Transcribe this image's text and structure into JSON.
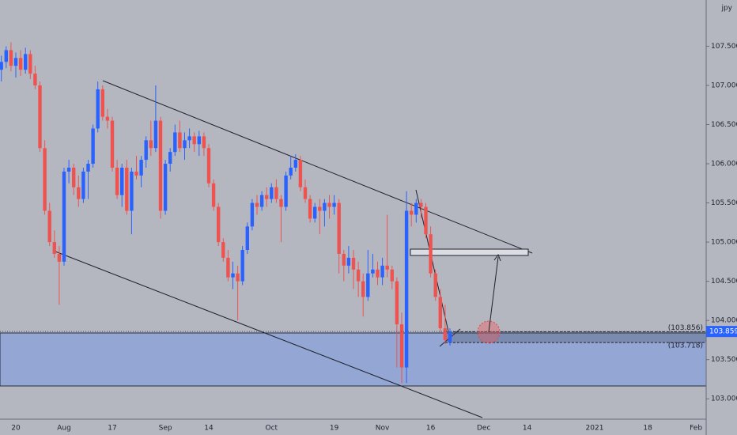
{
  "chart_data": {
    "type": "candlestick",
    "currency": "jpy",
    "categories": [
      null,
      null,
      null,
      "20",
      null,
      null,
      null,
      null,
      null,
      null,
      null,
      null,
      null,
      "Aug",
      null,
      null,
      null,
      null,
      null,
      null,
      null,
      null,
      null,
      "17",
      null,
      null,
      null,
      null,
      null,
      null,
      null,
      null,
      null,
      null,
      "Sep",
      null,
      null,
      null,
      null,
      null,
      null,
      null,
      null,
      "14",
      null,
      null,
      null,
      null,
      null,
      null,
      null,
      null,
      null,
      null,
      null,
      null,
      "Oct",
      null,
      null,
      null,
      null,
      null,
      null,
      null,
      null,
      null,
      null,
      null,
      null,
      "19",
      null,
      null,
      null,
      null,
      null,
      null,
      null,
      null,
      null,
      "Nov",
      null,
      null,
      null,
      null,
      null,
      null,
      null,
      null,
      null,
      "16",
      null,
      null,
      null,
      null,
      null,
      null,
      null,
      null,
      null,
      null,
      "Dec",
      null,
      null,
      null,
      null,
      null,
      null,
      null,
      null,
      "14",
      null,
      null,
      null,
      null,
      null,
      null,
      null,
      null,
      null,
      null,
      null,
      null,
      null,
      "2021",
      null,
      null,
      null,
      null,
      null,
      null,
      null,
      null,
      null,
      null,
      "18",
      null,
      null,
      null,
      null,
      null,
      null,
      null,
      null,
      null,
      "Feb",
      null
    ],
    "ohlc": [
      [
        107.2,
        107.38,
        107.05,
        107.3
      ],
      [
        107.3,
        107.5,
        107.22,
        107.45
      ],
      [
        107.45,
        107.55,
        107.18,
        107.25
      ],
      [
        107.25,
        107.42,
        107.1,
        107.35
      ],
      [
        107.35,
        107.45,
        107.12,
        107.2
      ],
      [
        107.2,
        107.48,
        107.15,
        107.4
      ],
      [
        107.4,
        107.45,
        107.08,
        107.15
      ],
      [
        107.15,
        107.25,
        106.95,
        107.0
      ],
      [
        107.0,
        107.05,
        106.15,
        106.2
      ],
      [
        106.2,
        106.3,
        105.35,
        105.4
      ],
      [
        105.4,
        105.5,
        104.95,
        105.0
      ],
      [
        105.0,
        105.15,
        104.8,
        104.85
      ],
      [
        104.85,
        104.95,
        104.2,
        104.75
      ],
      [
        104.75,
        105.95,
        104.7,
        105.9
      ],
      [
        105.9,
        106.05,
        105.75,
        105.95
      ],
      [
        105.95,
        106.0,
        105.6,
        105.7
      ],
      [
        105.7,
        105.85,
        105.45,
        105.55
      ],
      [
        105.55,
        105.95,
        105.5,
        105.9
      ],
      [
        105.9,
        106.05,
        105.55,
        106.0
      ],
      [
        106.0,
        106.5,
        105.95,
        106.45
      ],
      [
        106.45,
        107.05,
        106.4,
        106.95
      ],
      [
        106.95,
        107.0,
        106.55,
        106.6
      ],
      [
        106.6,
        106.7,
        106.45,
        106.55
      ],
      [
        106.55,
        106.6,
        105.9,
        105.95
      ],
      [
        105.95,
        106.05,
        105.55,
        105.6
      ],
      [
        105.6,
        106.0,
        105.45,
        105.95
      ],
      [
        105.95,
        106.05,
        105.35,
        105.4
      ],
      [
        105.4,
        105.95,
        105.1,
        105.9
      ],
      [
        105.9,
        106.1,
        105.8,
        105.85
      ],
      [
        105.85,
        106.1,
        105.7,
        106.05
      ],
      [
        106.05,
        106.35,
        105.95,
        106.3
      ],
      [
        106.3,
        106.55,
        106.1,
        106.2
      ],
      [
        106.2,
        107.0,
        106.15,
        106.55
      ],
      [
        106.55,
        106.6,
        105.3,
        105.4
      ],
      [
        105.4,
        106.05,
        105.35,
        106.0
      ],
      [
        106.0,
        106.2,
        105.9,
        106.15
      ],
      [
        106.15,
        106.5,
        106.1,
        106.4
      ],
      [
        106.4,
        106.55,
        106.15,
        106.2
      ],
      [
        106.2,
        106.4,
        106.05,
        106.3
      ],
      [
        106.3,
        106.45,
        106.2,
        106.35
      ],
      [
        106.35,
        106.4,
        106.15,
        106.25
      ],
      [
        106.25,
        106.42,
        106.1,
        106.35
      ],
      [
        106.35,
        106.4,
        106.1,
        106.2
      ],
      [
        106.2,
        106.25,
        105.7,
        105.75
      ],
      [
        105.75,
        105.8,
        105.4,
        105.45
      ],
      [
        105.45,
        105.5,
        104.95,
        105.0
      ],
      [
        105.0,
        105.05,
        104.75,
        104.8
      ],
      [
        104.8,
        104.9,
        104.5,
        104.55
      ],
      [
        104.55,
        104.75,
        104.4,
        104.6
      ],
      [
        104.6,
        104.7,
        104.0,
        104.5
      ],
      [
        104.5,
        104.95,
        104.45,
        104.9
      ],
      [
        104.9,
        105.25,
        104.85,
        105.2
      ],
      [
        105.2,
        105.55,
        105.15,
        105.5
      ],
      [
        105.5,
        105.6,
        105.35,
        105.45
      ],
      [
        105.45,
        105.65,
        105.4,
        105.6
      ],
      [
        105.6,
        105.7,
        105.45,
        105.55
      ],
      [
        105.55,
        105.75,
        105.5,
        105.7
      ],
      [
        105.7,
        105.8,
        105.5,
        105.55
      ],
      [
        105.55,
        105.6,
        105.0,
        105.45
      ],
      [
        105.45,
        105.9,
        105.4,
        105.85
      ],
      [
        105.85,
        106.1,
        105.8,
        105.95
      ],
      [
        105.95,
        106.12,
        105.9,
        106.05
      ],
      [
        106.05,
        106.1,
        105.65,
        105.7
      ],
      [
        105.7,
        105.8,
        105.5,
        105.55
      ],
      [
        105.55,
        105.6,
        105.25,
        105.3
      ],
      [
        105.3,
        105.5,
        105.25,
        105.45
      ],
      [
        105.45,
        105.55,
        105.1,
        105.4
      ],
      [
        105.4,
        105.55,
        105.2,
        105.5
      ],
      [
        105.5,
        105.6,
        105.3,
        105.45
      ],
      [
        105.45,
        105.6,
        105.35,
        105.5
      ],
      [
        105.5,
        105.55,
        104.6,
        104.85
      ],
      [
        104.85,
        104.9,
        104.5,
        104.7
      ],
      [
        104.7,
        104.95,
        104.6,
        104.8
      ],
      [
        104.8,
        104.9,
        104.4,
        104.65
      ],
      [
        104.65,
        104.75,
        104.3,
        104.5
      ],
      [
        104.5,
        104.6,
        104.05,
        104.3
      ],
      [
        104.3,
        104.9,
        104.25,
        104.6
      ],
      [
        104.6,
        104.85,
        104.55,
        104.65
      ],
      [
        104.65,
        104.75,
        104.45,
        104.55
      ],
      [
        104.55,
        104.8,
        104.45,
        104.7
      ],
      [
        104.7,
        105.35,
        104.55,
        104.65
      ],
      [
        104.65,
        104.7,
        104.4,
        104.5
      ],
      [
        104.5,
        104.55,
        103.4,
        103.95
      ],
      [
        103.95,
        104.1,
        103.2,
        103.4
      ],
      [
        103.4,
        105.65,
        103.2,
        105.4
      ],
      [
        105.4,
        105.5,
        105.2,
        105.35
      ],
      [
        105.35,
        105.55,
        105.25,
        105.5
      ],
      [
        105.5,
        105.55,
        105.3,
        105.45
      ],
      [
        105.45,
        105.5,
        105.05,
        105.1
      ],
      [
        105.1,
        105.2,
        104.55,
        104.6
      ],
      [
        104.6,
        104.65,
        104.25,
        104.3
      ],
      [
        104.3,
        104.4,
        103.85,
        103.9
      ],
      [
        103.9,
        104.2,
        103.7,
        103.75
      ],
      [
        103.72,
        103.9,
        103.68,
        103.859
      ],
      null,
      null,
      null,
      null,
      null,
      null,
      null,
      null,
      null,
      null,
      null,
      null,
      null,
      null,
      null,
      null,
      null,
      null,
      null,
      null,
      null,
      null,
      null,
      null,
      null,
      null,
      null,
      null,
      null,
      null,
      null,
      null,
      null,
      null,
      null,
      null,
      null,
      null,
      null,
      null,
      null,
      null,
      null,
      null,
      null,
      null,
      null,
      null,
      null,
      null,
      null,
      null
    ],
    "up_color": "#2962ff",
    "down_color": "#ef5350",
    "ylim": [
      102.74,
      108.09
    ],
    "yticks": [
      {
        "value": 103.0,
        "label": "103.000"
      },
      {
        "value": 103.5,
        "label": "103.500"
      },
      {
        "value": 104.0,
        "label": "104.000"
      },
      {
        "value": 104.5,
        "label": "104.500"
      },
      {
        "value": 105.0,
        "label": "105.000"
      },
      {
        "value": 105.5,
        "label": "105.500"
      },
      {
        "value": 106.0,
        "label": "106.000"
      },
      {
        "value": 106.5,
        "label": "106.500"
      },
      {
        "value": 107.0,
        "label": "107.000"
      },
      {
        "value": 107.5,
        "label": "107.500"
      }
    ],
    "last_price": 103.859,
    "levels": [
      {
        "value": 103.856,
        "label": "(103.856)"
      },
      {
        "value": 103.718,
        "label": "(103.718)"
      }
    ],
    "grid": false
  }
}
